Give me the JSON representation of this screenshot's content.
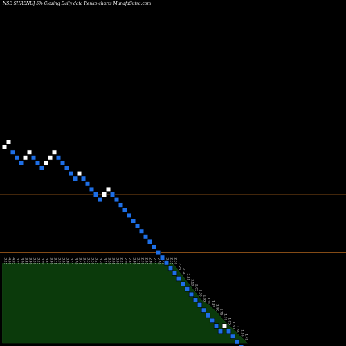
{
  "chart_data": {
    "type": "renko",
    "title": "NSE SHRENUJ 5% Closing Daily data Renko charts MunafaSutra.com",
    "colors": {
      "up_brick": "#ffffff",
      "down_brick": "#1e6fe6",
      "reference_line": "#b0641e",
      "volume_area": "#0b3a0b",
      "background": "#000000"
    },
    "grid": false,
    "reference_levels": [
      3.6,
      3.05
    ],
    "y_range": [
      1.1,
      4.6
    ],
    "bricks": [
      {
        "dir": "up",
        "close": 4.05
      },
      {
        "dir": "up",
        "close": 4.1
      },
      {
        "dir": "down",
        "close": 4.0
      },
      {
        "dir": "down",
        "close": 3.95
      },
      {
        "dir": "down",
        "close": 3.9
      },
      {
        "dir": "up",
        "close": 3.95
      },
      {
        "dir": "up",
        "close": 4.0
      },
      {
        "dir": "down",
        "close": 3.95
      },
      {
        "dir": "down",
        "close": 3.9
      },
      {
        "dir": "down",
        "close": 3.85
      },
      {
        "dir": "up",
        "close": 3.9
      },
      {
        "dir": "up",
        "close": 3.95
      },
      {
        "dir": "up",
        "close": 4.0
      },
      {
        "dir": "down",
        "close": 3.95
      },
      {
        "dir": "down",
        "close": 3.9
      },
      {
        "dir": "down",
        "close": 3.85
      },
      {
        "dir": "down",
        "close": 3.8
      },
      {
        "dir": "down",
        "close": 3.75
      },
      {
        "dir": "up",
        "close": 3.8
      },
      {
        "dir": "down",
        "close": 3.75
      },
      {
        "dir": "down",
        "close": 3.7
      },
      {
        "dir": "down",
        "close": 3.65
      },
      {
        "dir": "down",
        "close": 3.6
      },
      {
        "dir": "down",
        "close": 3.55
      },
      {
        "dir": "up",
        "close": 3.6
      },
      {
        "dir": "up",
        "close": 3.65
      },
      {
        "dir": "down",
        "close": 3.6
      },
      {
        "dir": "down",
        "close": 3.55
      },
      {
        "dir": "down",
        "close": 3.5
      },
      {
        "dir": "down",
        "close": 3.45
      },
      {
        "dir": "down",
        "close": 3.4
      },
      {
        "dir": "down",
        "close": 3.35
      },
      {
        "dir": "down",
        "close": 3.3
      },
      {
        "dir": "down",
        "close": 3.25
      },
      {
        "dir": "down",
        "close": 3.2
      },
      {
        "dir": "down",
        "close": 3.15
      },
      {
        "dir": "down",
        "close": 3.1
      },
      {
        "dir": "down",
        "close": 3.05
      },
      {
        "dir": "down",
        "close": 3.0
      },
      {
        "dir": "down",
        "close": 2.95
      },
      {
        "dir": "down",
        "close": 2.9
      },
      {
        "dir": "down",
        "close": 2.85
      },
      {
        "dir": "down",
        "close": 2.8
      },
      {
        "dir": "down",
        "close": 2.75
      },
      {
        "dir": "down",
        "close": 2.7
      },
      {
        "dir": "down",
        "close": 2.65
      },
      {
        "dir": "down",
        "close": 2.6
      },
      {
        "dir": "down",
        "close": 2.55
      },
      {
        "dir": "down",
        "close": 2.5
      },
      {
        "dir": "down",
        "close": 2.45
      },
      {
        "dir": "down",
        "close": 2.4
      },
      {
        "dir": "down",
        "close": 2.35
      },
      {
        "dir": "down",
        "close": 2.3
      },
      {
        "dir": "up",
        "close": 2.35
      },
      {
        "dir": "down",
        "close": 2.3
      },
      {
        "dir": "down",
        "close": 2.25
      },
      {
        "dir": "down",
        "close": 2.2
      },
      {
        "dir": "down",
        "close": 2.15
      },
      {
        "dir": "down",
        "close": 2.1
      }
    ],
    "tick_labels": [
      "3.95",
      "4.00",
      "4.05",
      "3.95",
      "3.90",
      "3.85",
      "3.80",
      "3.90",
      "3.95",
      "3.90",
      "3.85",
      "3.80",
      "3.75",
      "3.70",
      "3.65",
      "3.60",
      "3.55",
      "3.50",
      "3.45",
      "3.40",
      "3.35",
      "3.30",
      "3.25",
      "3.20",
      "3.15",
      "3.10",
      "3.05",
      "3.00",
      "2.95",
      "2.90",
      "2.85",
      "2.80",
      "2.75",
      "2.70",
      "2.65",
      "2.60",
      "2.55",
      "2.50",
      "2.45",
      "2.40",
      "2.35",
      "2.30",
      "2.25",
      "2.20",
      "2.15",
      "2.10",
      "2.05",
      "2.00",
      "1.95",
      "1.90",
      "1.85",
      "1.80",
      "1.75",
      "1.70",
      "1.65",
      "1.60",
      "1.55",
      "1.50",
      "1.45"
    ],
    "volume": [
      0.6,
      0.6,
      0.6,
      0.6,
      0.6,
      0.6,
      0.6,
      0.6,
      0.6,
      0.6,
      0.6,
      0.6,
      0.6,
      0.6,
      0.6,
      0.6,
      0.6,
      0.6,
      0.6,
      0.6,
      0.6,
      0.6,
      0.6,
      0.6,
      0.6,
      0.6,
      0.6,
      0.6,
      0.6,
      0.6,
      0.6,
      0.6,
      0.6,
      0.6,
      0.6,
      0.6,
      0.6,
      0.6,
      0.6,
      0.6,
      0.6,
      0.6,
      0.56,
      0.52,
      0.48,
      0.44,
      0.4,
      0.36,
      0.32,
      0.3,
      0.28,
      0.25,
      0.22,
      0.18,
      0.15,
      0.12,
      0.09,
      0.06,
      0.03
    ]
  }
}
